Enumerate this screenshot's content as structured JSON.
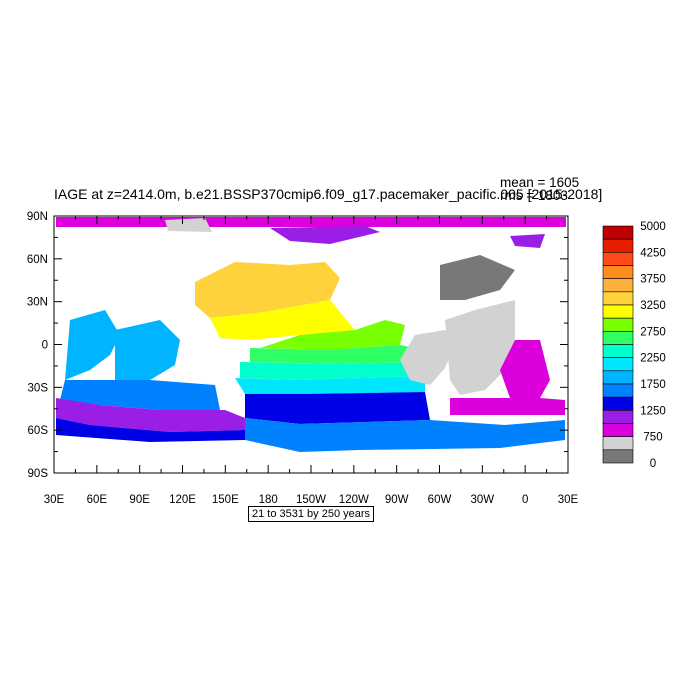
{
  "title": "IAGE at z=2414.0m, b.e21.BSSP370cmip6.f09_g17.pacemaker_pacific.005 [2015-2018]",
  "stats": {
    "mean": "mean = 1605",
    "rms": "rms = 1803"
  },
  "range_label": "21 to 3531 by 250 years",
  "map": {
    "lon_labels": [
      "30E",
      "60E",
      "90E",
      "120E",
      "150E",
      "180",
      "150W",
      "120W",
      "90W",
      "60W",
      "30W",
      "0",
      "30E"
    ],
    "lat_labels": [
      "90N",
      "60N",
      "30N",
      "0",
      "30S",
      "60S",
      "90S"
    ]
  },
  "colorbar": {
    "labels": [
      "5000",
      "4250",
      "3750",
      "3250",
      "2750",
      "2250",
      "1750",
      "1250",
      "750",
      "0"
    ],
    "colors": [
      "#c00000",
      "#e61e00",
      "#ff4b19",
      "#ff8c1e",
      "#ffaf3c",
      "#ffd23c",
      "#ffff00",
      "#78ff00",
      "#2dff64",
      "#00ffcd",
      "#00e6ff",
      "#00b4ff",
      "#0082ff",
      "#0000e6",
      "#9b1ee6",
      "#dc00dc",
      "#d2d2d2",
      "#787878"
    ]
  }
}
